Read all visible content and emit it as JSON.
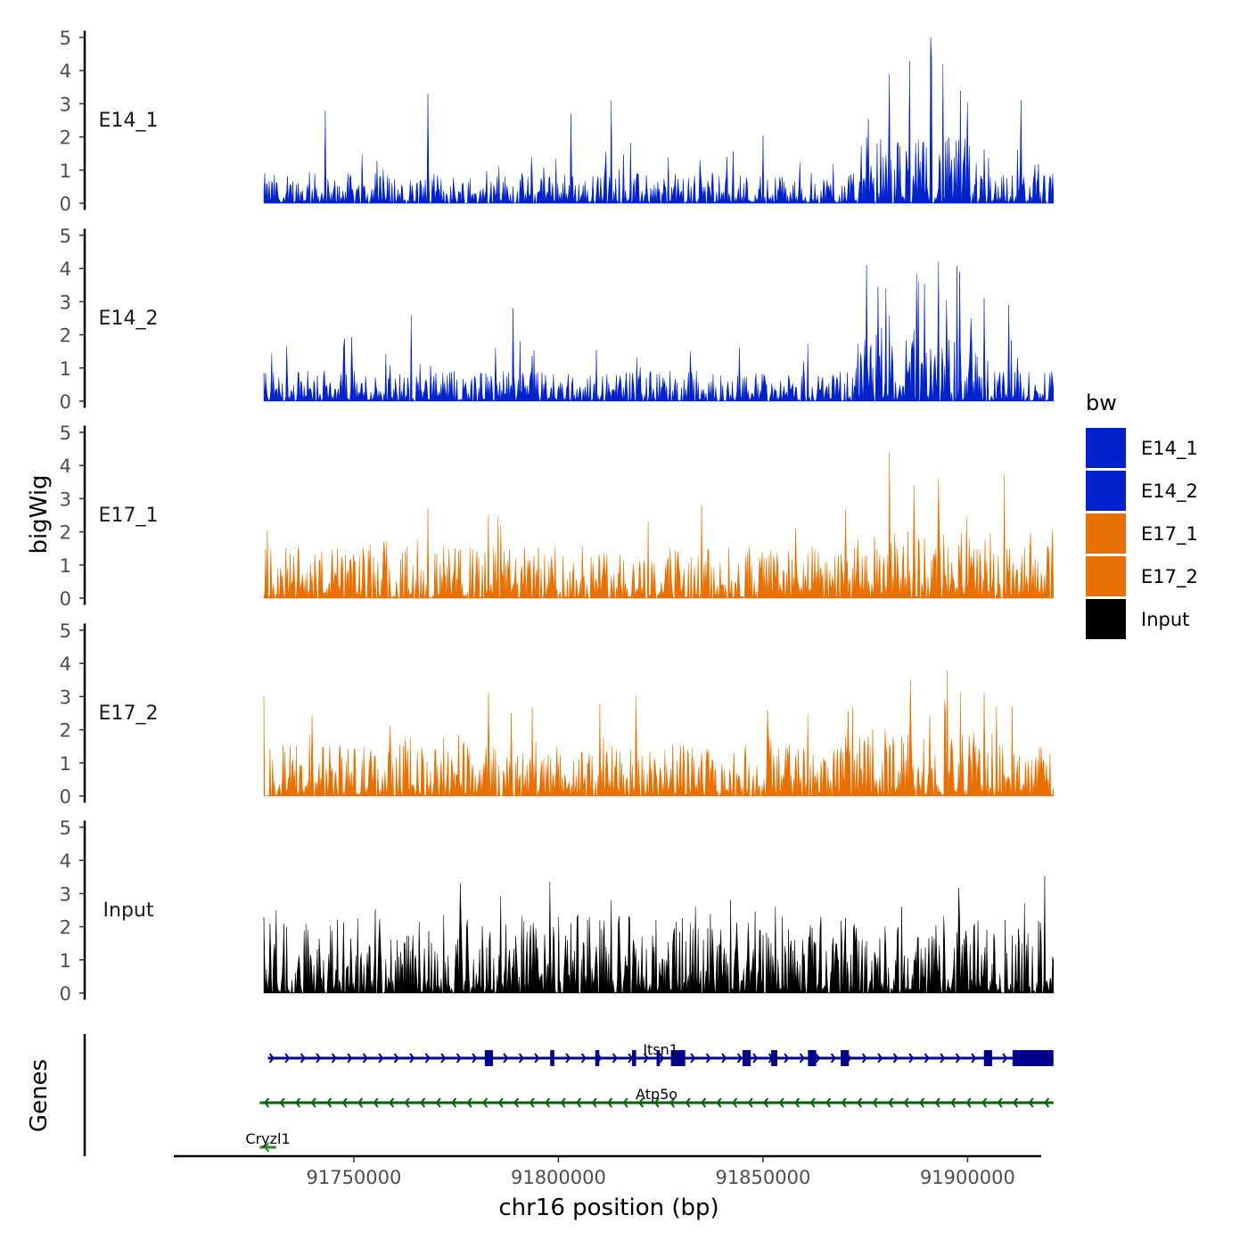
{
  "chart_data": {
    "type": "area",
    "title": "",
    "ylabel": "bigWig",
    "xlabel": "chr16 position (bp)",
    "genes_label": "Genes",
    "ylim": [
      0,
      5
    ],
    "y_ticks": [
      0,
      1,
      2,
      3,
      4,
      5
    ],
    "x_range": [
      91706000,
      91918000
    ],
    "x_ticks": [
      91750000,
      91800000,
      91850000,
      91900000
    ],
    "x_tick_labels": [
      "91750000",
      "91800000",
      "91850000",
      "91900000"
    ],
    "data_range": [
      91728000,
      91921000
    ],
    "legend": {
      "title": "bw",
      "position": "right",
      "entries": [
        {
          "label": "E14_1",
          "color": "#0022CC"
        },
        {
          "label": "E14_2",
          "color": "#0022CC"
        },
        {
          "label": "E17_1",
          "color": "#E87000"
        },
        {
          "label": "E17_2",
          "color": "#E87000"
        },
        {
          "label": "Input",
          "color": "#000000"
        }
      ]
    },
    "series": [
      {
        "name": "E14_1",
        "color": "#0022CC",
        "peaks": [
          [
            91743000,
            2.8
          ],
          [
            91768000,
            3.3
          ],
          [
            91803000,
            2.7
          ],
          [
            91813000,
            3.1
          ],
          [
            91881000,
            3.9
          ],
          [
            91891000,
            5.0
          ],
          [
            91894000,
            4.2
          ],
          [
            91913000,
            3.1
          ]
        ]
      },
      {
        "name": "E14_2",
        "color": "#0022CC",
        "peaks": [
          [
            91764000,
            2.6
          ],
          [
            91789000,
            2.8
          ],
          [
            91880000,
            3.4
          ],
          [
            91888000,
            3.6
          ],
          [
            91893000,
            4.2
          ],
          [
            91898000,
            3.9
          ],
          [
            91904000,
            3.1
          ],
          [
            91910000,
            2.9
          ]
        ]
      },
      {
        "name": "E17_1",
        "color": "#E87000",
        "peaks": [
          [
            91768000,
            2.7
          ],
          [
            91783000,
            2.5
          ],
          [
            91822000,
            2.3
          ],
          [
            91858000,
            2.1
          ],
          [
            91881000,
            4.4
          ],
          [
            91887000,
            3.4
          ],
          [
            91893000,
            3.6
          ],
          [
            91909000,
            3.7
          ]
        ]
      },
      {
        "name": "E17_2",
        "color": "#E87000",
        "peaks": [
          [
            91728000,
            3.0
          ],
          [
            91783000,
            3.1
          ],
          [
            91819000,
            3.0
          ],
          [
            91851000,
            2.6
          ],
          [
            91886000,
            3.5
          ],
          [
            91895000,
            3.8
          ],
          [
            91904000,
            3.1
          ],
          [
            91911000,
            2.7
          ]
        ]
      },
      {
        "name": "Input",
        "color": "#000000",
        "peaks": [
          [
            91731000,
            2.5
          ],
          [
            91776000,
            3.3
          ],
          [
            91786000,
            2.9
          ],
          [
            91813000,
            2.8
          ],
          [
            91842000,
            2.8
          ],
          [
            91853000,
            2.6
          ],
          [
            91884000,
            2.6
          ],
          [
            91914000,
            2.7
          ]
        ]
      }
    ],
    "genes": [
      {
        "name": "Itsn1",
        "start": 91729000,
        "end": 91921000,
        "strand": "+",
        "color": "#00008B",
        "row": 0,
        "exons": [
          [
            91782000,
            91784000
          ],
          [
            91798000,
            91799000
          ],
          [
            91809000,
            91810000
          ],
          [
            91818000,
            91819000
          ],
          [
            91824000,
            91824800
          ],
          [
            91827500,
            91831000
          ],
          [
            91845000,
            91847000
          ],
          [
            91852000,
            91853500
          ],
          [
            91861000,
            91863000
          ],
          [
            91869000,
            91871000
          ],
          [
            91904000,
            91906000
          ],
          [
            91911000,
            91912500
          ],
          [
            91912500,
            91921000
          ]
        ]
      },
      {
        "name": "Atp5o",
        "start": 91727000,
        "end": 91921000,
        "strand": "-",
        "color": "#006400",
        "row": 1,
        "exons": []
      },
      {
        "name": "Cryzl1",
        "start": 91727000,
        "end": 91731000,
        "strand": "-",
        "color": "#228B22",
        "row": 2,
        "exons": []
      }
    ]
  }
}
